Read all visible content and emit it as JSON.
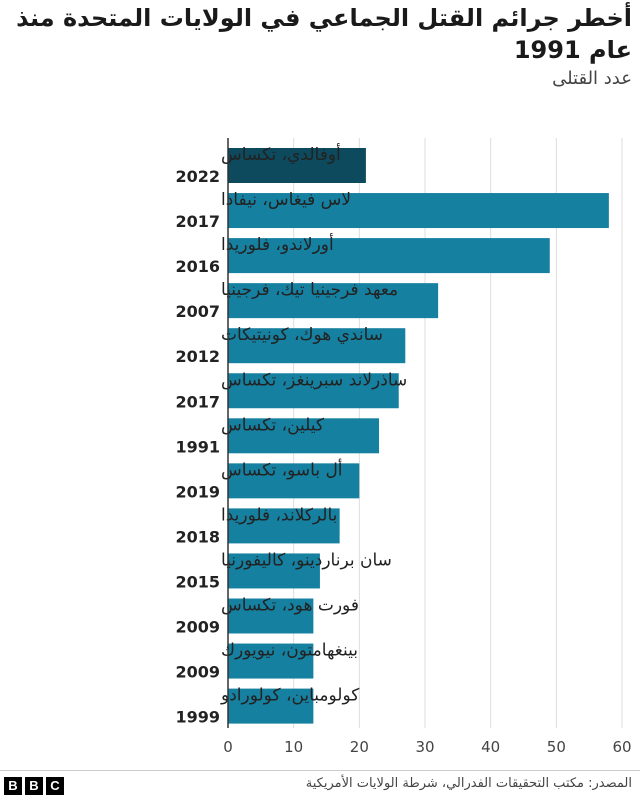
{
  "title": "أخطر جرائم القتل الجماعي في الولايات المتحدة منذ عام 1991",
  "subtitle": "عدد القتلى",
  "source": "المصدر: مكتب التحقيقات الفدرالي، شرطة الولايات الأمريكية",
  "logo_text": "BBC",
  "colors": {
    "highlight": "#0d4a5e",
    "bar": "#1680a0",
    "grid": "#dddddd",
    "axis": "#333333"
  },
  "chart_data": {
    "type": "bar",
    "orientation": "horizontal",
    "title": "أخطر جرائم القتل الجماعي في الولايات المتحدة منذ عام 1991",
    "subtitle": "عدد القتلى",
    "xlim": [
      0,
      60
    ],
    "xticks": [
      0,
      10,
      20,
      30,
      40,
      50,
      60
    ],
    "grid": true,
    "categories": [
      {
        "place": "أوفالدي، تكساس",
        "year": "2022"
      },
      {
        "place": "لاس فيغاس، نيفادا",
        "year": "2017"
      },
      {
        "place": "أورلاندو، فلوريدا",
        "year": "2016"
      },
      {
        "place": "معهد فرجينيا تيك، فرجينيا",
        "year": "2007"
      },
      {
        "place": "ساندي هوك، كونيتيكات",
        "year": "2012"
      },
      {
        "place": "ساذرلاند سبرينغز، تكساس",
        "year": "2017"
      },
      {
        "place": "كيلين، تكساس",
        "year": "1991"
      },
      {
        "place": "أل باسو، تكساس",
        "year": "2019"
      },
      {
        "place": "بالركلاند، فلوريدا",
        "year": "2018"
      },
      {
        "place": "سان برناردينو، كاليفورنيا",
        "year": "2015"
      },
      {
        "place": "فورت هود، تكساس",
        "year": "2009"
      },
      {
        "place": "بينغهامتون، نيويورك",
        "year": "2009"
      },
      {
        "place": "كولومباين، كولورادو",
        "year": "1999"
      }
    ],
    "values": [
      21,
      58,
      49,
      32,
      27,
      26,
      23,
      20,
      17,
      14,
      13,
      13,
      13
    ],
    "highlight_index": 0
  }
}
